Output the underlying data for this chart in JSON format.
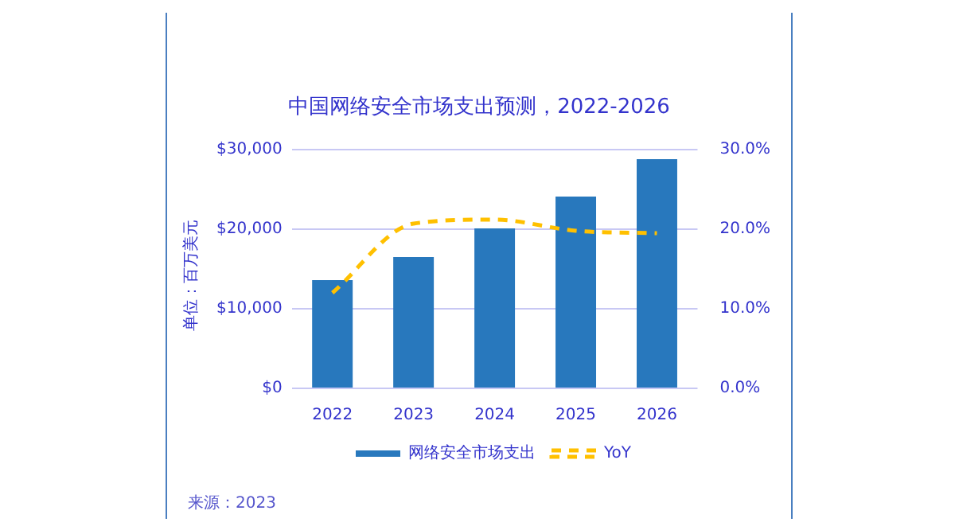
{
  "chart_data": {
    "type": "bar",
    "title": "中国网络安全市场支出预测，2022-2026",
    "ylabel": "单位：百万美元",
    "categories": [
      "2022",
      "2023",
      "2024",
      "2025",
      "2026"
    ],
    "series": [
      {
        "name": "网络安全市场支出",
        "color": "#2878bd",
        "values": [
          13600,
          16500,
          20100,
          24100,
          28800
        ]
      },
      {
        "name": "YoY",
        "type": "line",
        "axis": "y2",
        "color": "#ffc000",
        "line_style": "dashed",
        "marker": "none",
        "values": [
          12.0,
          20.7,
          21.2,
          19.8,
          19.5
        ]
      }
    ],
    "ylim": [
      0,
      30000
    ],
    "yticks": [
      {
        "value": 0,
        "label": "$0"
      },
      {
        "value": 10000,
        "label": "$10,000"
      },
      {
        "value": 20000,
        "label": "$20,000"
      },
      {
        "value": 30000,
        "label": "$30,000"
      }
    ],
    "y2lim": [
      0,
      30
    ],
    "y2ticks": [
      {
        "value": 0,
        "label": "0.0%"
      },
      {
        "value": 10,
        "label": "10.0%"
      },
      {
        "value": 20,
        "label": "20.0%"
      },
      {
        "value": 30,
        "label": "30.0%"
      }
    ],
    "grid": "y",
    "legend": "bottom",
    "annotations": [
      "来源：2023"
    ]
  }
}
